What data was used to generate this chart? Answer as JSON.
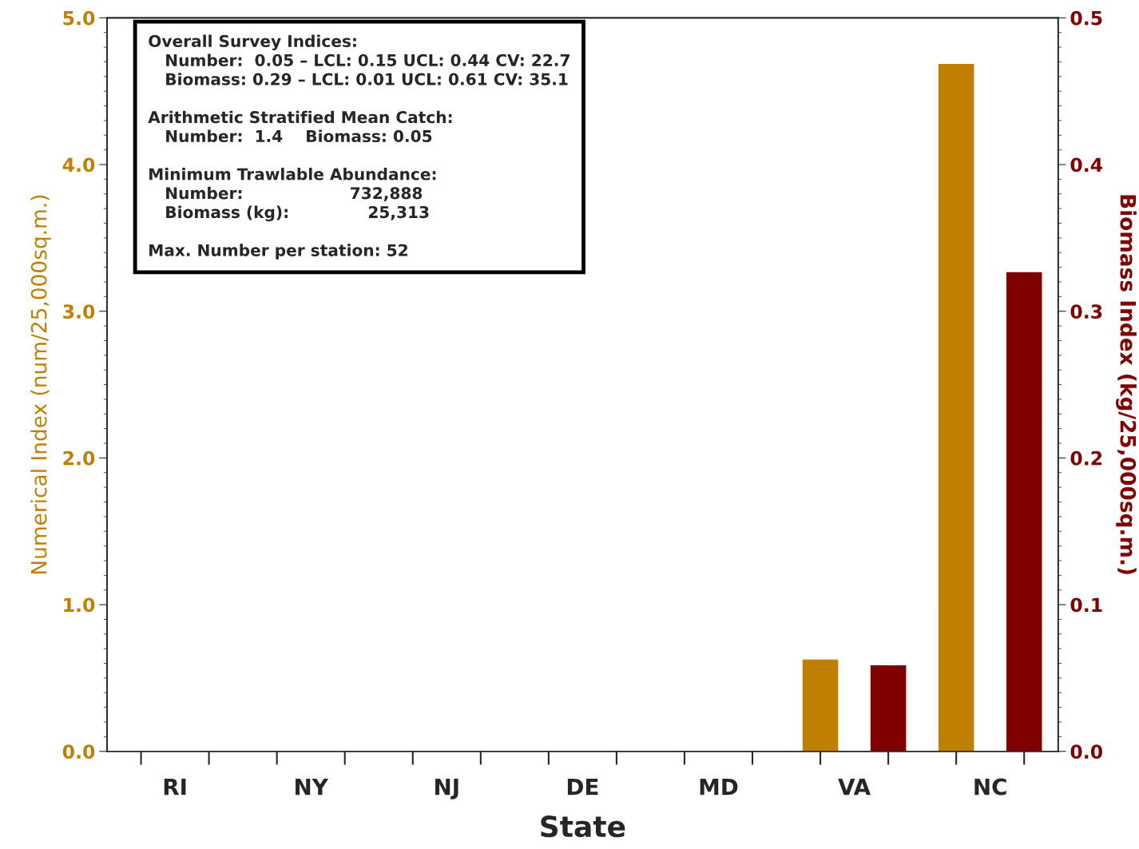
{
  "chart_data": {
    "type": "bar",
    "categories": [
      "RI",
      "NY",
      "NJ",
      "DE",
      "MD",
      "VA",
      "NC"
    ],
    "series": [
      {
        "name": null,
        "color": "#bf7f00",
        "values": [
          null,
          null,
          null,
          null,
          null,
          0.63,
          4.69
        ]
      },
      {
        "name": null,
        "color": "#800000",
        "axis": "y2",
        "values": [
          null,
          null,
          null,
          null,
          null,
          0.059,
          0.327
        ]
      }
    ],
    "xlabel": "State",
    "ylabel": "Numerical Index (num/25,000sq.m.)",
    "y2label": "Biomass Index (kg/25,000sq.m.)",
    "ylim": [
      0,
      5
    ],
    "yticks": [
      {
        "value": 0,
        "label": "0.0"
      },
      {
        "value": 1,
        "label": "1.0"
      },
      {
        "value": 2,
        "label": "2.0"
      },
      {
        "value": 3,
        "label": "3.0"
      },
      {
        "value": 4,
        "label": "4.0"
      },
      {
        "value": 5,
        "label": "5.0"
      }
    ],
    "y2lim": [
      0,
      0.5
    ],
    "y2ticks": [
      {
        "value": 0,
        "label": "0.0"
      },
      {
        "value": 0.1,
        "label": "0.1"
      },
      {
        "value": 0.2,
        "label": "0.2"
      },
      {
        "value": 0.3,
        "label": "0.3"
      },
      {
        "value": 0.4,
        "label": "0.4"
      },
      {
        "value": 0.5,
        "label": "0.5"
      }
    ],
    "grid": false,
    "legend": false,
    "annotations": [
      "Overall Survey Indices:\n   Number:  0.05 – LCL: 0.15 UCL: 0.44 CV: 22.7\n   Biomass: 0.29 – LCL: 0.01 UCL: 0.61 CV: 35.1",
      "Arithmetic Stratified Mean Catch:\n   Number:  1.4    Biomass: 0.05",
      "Minimum Trawlable Abundance:\n   Number:                   732,888\n   Biomass (kg):              25,313",
      "Max. Number per station: 52"
    ]
  }
}
